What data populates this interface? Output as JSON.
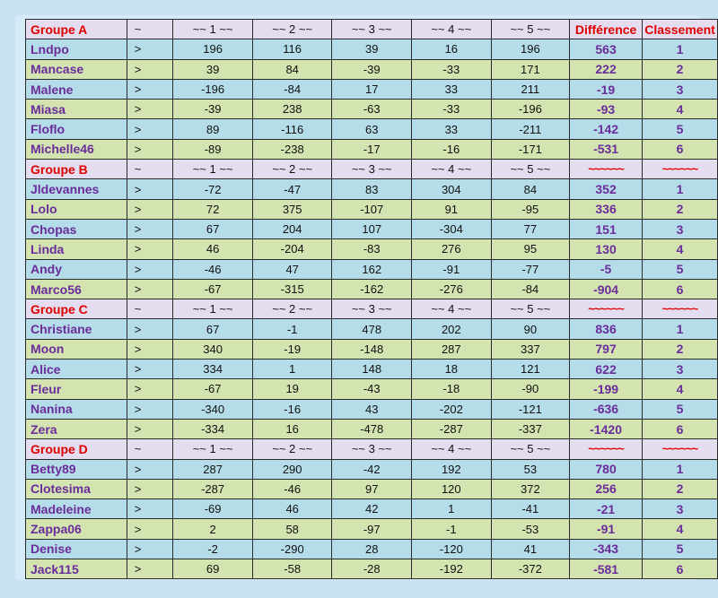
{
  "groups": [
    {
      "header": [
        "Groupe A",
        "~",
        "~~ 1 ~~",
        "~~ 2 ~~",
        "~~ 3 ~~",
        "~~ 4 ~~",
        "~~ 5 ~~",
        "Différence",
        "Classement"
      ],
      "rows": [
        [
          "Lndpo",
          ">",
          "196",
          "116",
          "39",
          "16",
          "196",
          "563",
          "1"
        ],
        [
          "Mancase",
          ">",
          "39",
          "84",
          "-39",
          "-33",
          "171",
          "222",
          "2"
        ],
        [
          "Malene",
          ">",
          "-196",
          "-84",
          "17",
          "33",
          "211",
          "-19",
          "3"
        ],
        [
          "Miasa",
          ">",
          "-39",
          "238",
          "-63",
          "-33",
          "-196",
          "-93",
          "4"
        ],
        [
          "Floflo",
          ">",
          "89",
          "-116",
          "63",
          "33",
          "-211",
          "-142",
          "5"
        ],
        [
          "Michelle46",
          ">",
          "-89",
          "-238",
          "-17",
          "-16",
          "-171",
          "-531",
          "6"
        ]
      ]
    },
    {
      "header": [
        "Groupe B",
        "~",
        "~~ 1 ~~",
        "~~ 2 ~~",
        "~~ 3 ~~",
        "~~ 4 ~~",
        "~~ 5 ~~",
        "~~~~~~",
        "~~~~~~"
      ],
      "rows": [
        [
          "Jldevannes",
          ">",
          "-72",
          "-47",
          "83",
          "304",
          "84",
          "352",
          "1"
        ],
        [
          "Lolo",
          ">",
          "72",
          "375",
          "-107",
          "91",
          "-95",
          "336",
          "2"
        ],
        [
          "Chopas",
          ">",
          "67",
          "204",
          "107",
          "-304",
          "77",
          "151",
          "3"
        ],
        [
          "Linda",
          ">",
          "46",
          "-204",
          "-83",
          "276",
          "95",
          "130",
          "4"
        ],
        [
          "Andy",
          ">",
          "-46",
          "47",
          "162",
          "-91",
          "-77",
          "-5",
          "5"
        ],
        [
          "Marco56",
          ">",
          "-67",
          "-315",
          "-162",
          "-276",
          "-84",
          "-904",
          "6"
        ]
      ]
    },
    {
      "header": [
        "Groupe C",
        "~",
        "~~ 1 ~~",
        "~~ 2 ~~",
        "~~ 3 ~~",
        "~~ 4 ~~",
        "~~ 5 ~~",
        "~~~~~~",
        "~~~~~~"
      ],
      "rows": [
        [
          "Christiane",
          ">",
          "67",
          "-1",
          "478",
          "202",
          "90",
          "836",
          "1"
        ],
        [
          "Moon",
          ">",
          "340",
          "-19",
          "-148",
          "287",
          "337",
          "797",
          "2"
        ],
        [
          "Alice",
          ">",
          "334",
          "1",
          "148",
          "18",
          "121",
          "622",
          "3"
        ],
        [
          "Fleur",
          ">",
          "-67",
          "19",
          "-43",
          "-18",
          "-90",
          "-199",
          "4"
        ],
        [
          "Nanina",
          ">",
          "-340",
          "-16",
          "43",
          "-202",
          "-121",
          "-636",
          "5"
        ],
        [
          "Zera",
          ">",
          "-334",
          "16",
          "-478",
          "-287",
          "-337",
          "-1420",
          "6"
        ]
      ]
    },
    {
      "header": [
        "Groupe D",
        "~",
        "~~ 1 ~~",
        "~~ 2 ~~",
        "~~ 3 ~~",
        "~~ 4 ~~",
        "~~ 5 ~~",
        "~~~~~~",
        "~~~~~~"
      ],
      "rows": [
        [
          "Betty89",
          ">",
          "287",
          "290",
          "-42",
          "192",
          "53",
          "780",
          "1"
        ],
        [
          "Clotesima",
          ">",
          "-287",
          "-46",
          "97",
          "120",
          "372",
          "256",
          "2"
        ],
        [
          "Madeleine",
          ">",
          "-69",
          "46",
          "42",
          "1",
          "-41",
          "-21",
          "3"
        ],
        [
          "Zappa06",
          ">",
          "2",
          "58",
          "-97",
          "-1",
          "-53",
          "-91",
          "4"
        ],
        [
          "Denise",
          ">",
          "-2",
          "-290",
          "28",
          "-120",
          "41",
          "-343",
          "5"
        ],
        [
          "Jack115",
          ">",
          "69",
          "-58",
          "-28",
          "-192",
          "-372",
          "-581",
          "6"
        ]
      ]
    }
  ],
  "colors": {
    "header_bg": "#e4dcef",
    "row_blue": "#b5dde9",
    "row_green": "#d3e4b0",
    "name_purple": "#6a2c9a",
    "header_red": "#e00000"
  }
}
